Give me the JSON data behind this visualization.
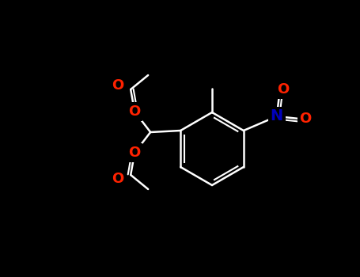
{
  "bg_color": "#000000",
  "bond_color": "#ffffff",
  "o_color": "#ff2200",
  "n_color": "#0000bb",
  "bond_lw": 1.8,
  "dbl_lw": 1.5,
  "figsize": [
    4.55,
    3.5
  ],
  "dpi": 100,
  "xlim": [
    0,
    455
  ],
  "ylim": [
    0,
    350
  ],
  "font_size": 13
}
